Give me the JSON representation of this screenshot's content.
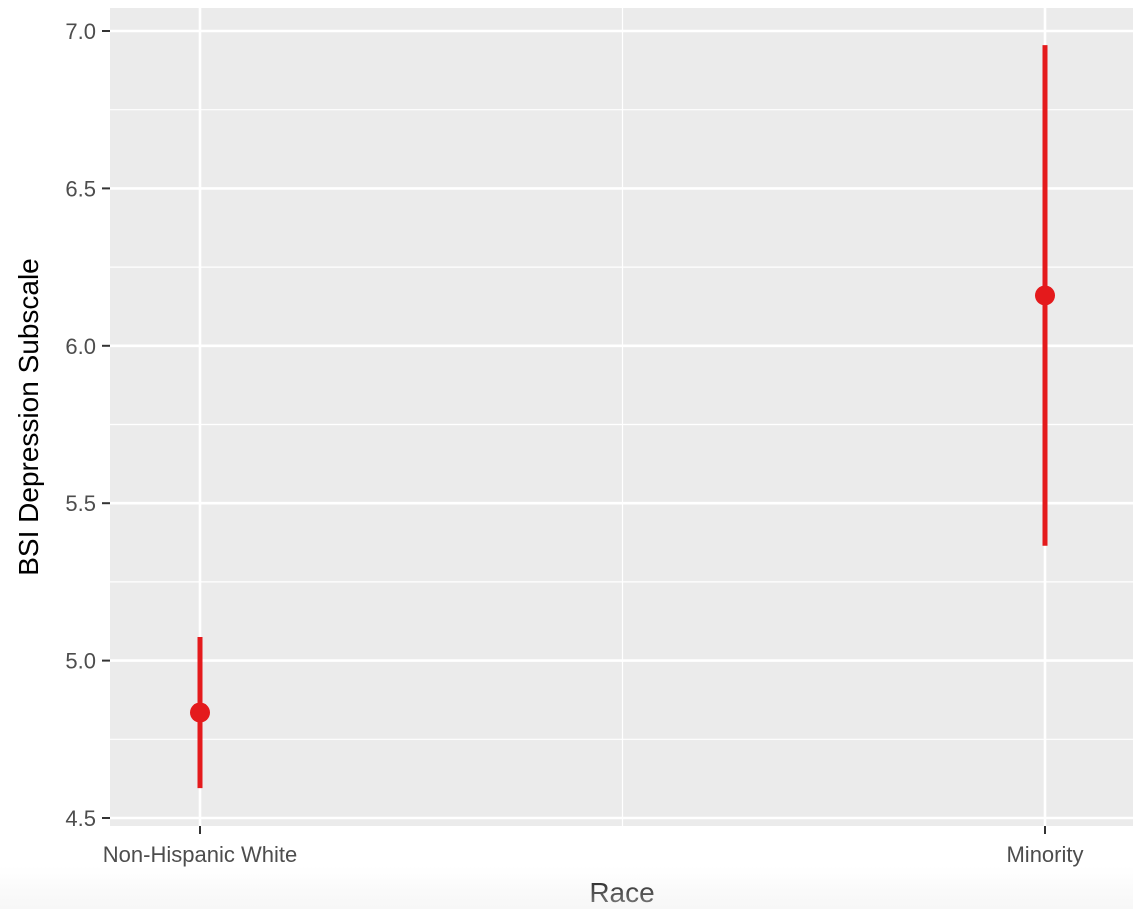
{
  "chart_data": {
    "type": "scatter",
    "subtype": "point-range",
    "title": "",
    "xlabel": "Race",
    "ylabel": "BSI Depression Subscale",
    "categories": [
      "Non-Hispanic White",
      "Minority"
    ],
    "series": [
      {
        "points": [
          {
            "x": "Non-Hispanic White",
            "y": 4.835,
            "ymin": 4.595,
            "ymax": 5.075
          },
          {
            "x": "Minority",
            "y": 6.16,
            "ymin": 5.365,
            "ymax": 6.955
          }
        ]
      }
    ],
    "ylim": [
      4.5,
      7.0
    ],
    "yticks": [
      "4.5",
      "5.0",
      "5.5",
      "6.0",
      "6.5",
      "7.0"
    ],
    "grid": true,
    "legend": "none",
    "colors": {
      "panel": "#ebebeb",
      "grid": "#ffffff",
      "point": "#e41a1c",
      "tick_text": "#4d4d4d",
      "axis_title": "#000000"
    }
  }
}
